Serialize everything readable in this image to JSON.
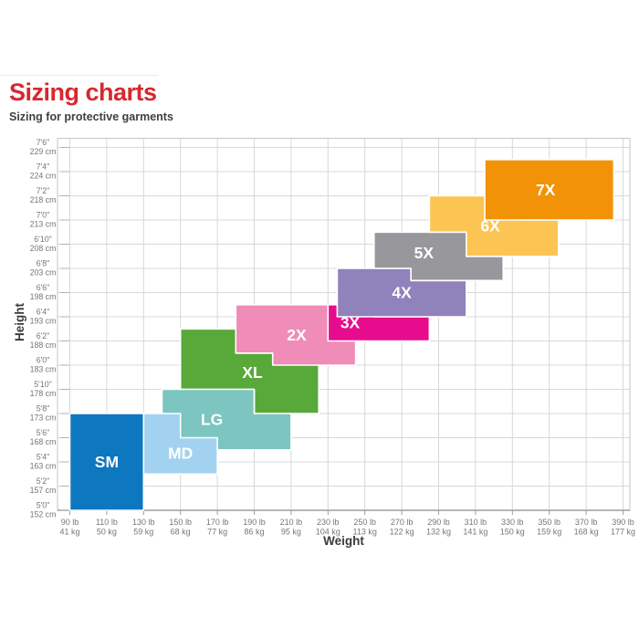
{
  "header": {
    "title": "Sizing charts",
    "subtitle": "Sizing for protective garments"
  },
  "colors": {
    "title": "#d7282e",
    "subtitle": "#404041",
    "grid": "#d8d8d8",
    "border": "#c6c6c6",
    "axis": "#9d9d9d",
    "tick_stub": "#b3b3b3",
    "tick_text": "#76767a",
    "axis_title": "#3b3b3d",
    "block_label": "#ffffff",
    "block_border": "#ffffff"
  },
  "chart_data": {
    "type": "area",
    "subtype": "size-region-map",
    "title": "Sizing charts",
    "subtitle": "Sizing for protective garments",
    "xlabel": "Weight",
    "ylabel": "Height",
    "grid": true,
    "legend": false,
    "x_axis": {
      "values_lb": [
        90,
        110,
        130,
        150,
        170,
        190,
        210,
        230,
        250,
        270,
        290,
        310,
        330,
        350,
        370,
        390
      ],
      "ticks": [
        [
          "90 lb",
          "41 kg"
        ],
        [
          "110 lb",
          "50 kg"
        ],
        [
          "130 lb",
          "59 kg"
        ],
        [
          "150 lb",
          "68 kg"
        ],
        [
          "170 lb",
          "77 kg"
        ],
        [
          "190 lb",
          "86 kg"
        ],
        [
          "210 lb",
          "95 kg"
        ],
        [
          "230 lb",
          "104 kg"
        ],
        [
          "250 lb",
          "113 kg"
        ],
        [
          "270 lb",
          "122 kg"
        ],
        [
          "290 lb",
          "132 kg"
        ],
        [
          "310 lb",
          "141 kg"
        ],
        [
          "330 lb",
          "150 kg"
        ],
        [
          "350 lb",
          "159 kg"
        ],
        [
          "370 lb",
          "168 kg"
        ],
        [
          "390 lb",
          "177 kg"
        ]
      ]
    },
    "y_axis": {
      "values_in": [
        60,
        62,
        64,
        66,
        68,
        70,
        72,
        74,
        76,
        78,
        80,
        82,
        84,
        86,
        88,
        90
      ],
      "ticks": [
        [
          "5'0\"",
          "152 cm"
        ],
        [
          "5'2\"",
          "157 cm"
        ],
        [
          "5'4\"",
          "163 cm"
        ],
        [
          "5'6\"",
          "168 cm"
        ],
        [
          "5'8\"",
          "173 cm"
        ],
        [
          "5'10\"",
          "178 cm"
        ],
        [
          "6'0\"",
          "183 cm"
        ],
        [
          "6'2\"",
          "188 cm"
        ],
        [
          "6'4\"",
          "193 cm"
        ],
        [
          "6'6\"",
          "198 cm"
        ],
        [
          "6'8\"",
          "203 cm"
        ],
        [
          "6'10\"",
          "208 cm"
        ],
        [
          "7'0\"",
          "213 cm"
        ],
        [
          "7'2\"",
          "218 cm"
        ],
        [
          "7'4\"",
          "224 cm"
        ],
        [
          "7'6\"",
          "229 cm"
        ]
      ]
    },
    "sizes": [
      {
        "label": "SM",
        "color": "#0d77bf",
        "weight_lb": [
          90,
          130
        ],
        "height_in": [
          60,
          68
        ],
        "polygon": [
          [
            90,
            68
          ],
          [
            130,
            68
          ],
          [
            130,
            60
          ],
          [
            90,
            60
          ]
        ],
        "label_at": [
          110,
          64
        ]
      },
      {
        "label": "XL",
        "color": "#58a93a",
        "weight_lb": [
          150,
          225
        ],
        "height_in": [
          68,
          75
        ],
        "polygon": [
          [
            150,
            75
          ],
          [
            180,
            75
          ],
          [
            180,
            73
          ],
          [
            225,
            73
          ],
          [
            225,
            68
          ],
          [
            190,
            68
          ],
          [
            190,
            70
          ],
          [
            150,
            70
          ]
        ],
        "label_at": [
          189,
          71.4
        ]
      },
      {
        "label": "LG",
        "color": "#7cc5c0",
        "weight_lb": [
          140,
          210
        ],
        "height_in": [
          65,
          70
        ],
        "polygon": [
          [
            140,
            70
          ],
          [
            190,
            70
          ],
          [
            190,
            68
          ],
          [
            210,
            68
          ],
          [
            210,
            65
          ],
          [
            150,
            65
          ],
          [
            150,
            66
          ],
          [
            140,
            66
          ]
        ],
        "label_at": [
          167,
          67.5
        ]
      },
      {
        "label": "MD",
        "color": "#a3d2f0",
        "weight_lb": [
          130,
          170
        ],
        "height_in": [
          63,
          68
        ],
        "polygon": [
          [
            130,
            68
          ],
          [
            150,
            68
          ],
          [
            150,
            66
          ],
          [
            170,
            66
          ],
          [
            170,
            63
          ],
          [
            130,
            63
          ]
        ],
        "label_at": [
          150,
          64.7
        ]
      },
      {
        "label": "2X",
        "color": "#ef8cb7",
        "weight_lb": [
          180,
          245
        ],
        "height_in": [
          72,
          77
        ],
        "polygon": [
          [
            180,
            77
          ],
          [
            245,
            77
          ],
          [
            245,
            72
          ],
          [
            200,
            72
          ],
          [
            200,
            73
          ],
          [
            180,
            73
          ]
        ],
        "label_at": [
          213,
          74.5
        ]
      },
      {
        "label": "3X",
        "color": "#e60c8d",
        "weight_lb": [
          230,
          285
        ],
        "height_in": [
          74,
          77
        ],
        "polygon": [
          [
            230,
            77
          ],
          [
            255,
            77
          ],
          [
            255,
            76
          ],
          [
            285,
            76
          ],
          [
            285,
            74
          ],
          [
            230,
            74
          ]
        ],
        "label_at": [
          242,
          75.5
        ]
      },
      {
        "label": "4X",
        "color": "#9082bb",
        "weight_lb": [
          235,
          305
        ],
        "height_in": [
          76,
          80
        ],
        "polygon": [
          [
            235,
            80
          ],
          [
            275,
            80
          ],
          [
            275,
            79
          ],
          [
            305,
            79
          ],
          [
            305,
            76
          ],
          [
            235,
            76
          ]
        ],
        "label_at": [
          270,
          78
        ]
      },
      {
        "label": "5X",
        "color": "#98979b",
        "weight_lb": [
          255,
          325
        ],
        "height_in": [
          79,
          83
        ],
        "polygon": [
          [
            255,
            83
          ],
          [
            305,
            83
          ],
          [
            305,
            81
          ],
          [
            325,
            81
          ],
          [
            325,
            79
          ],
          [
            275,
            79
          ],
          [
            275,
            80
          ],
          [
            255,
            80
          ]
        ],
        "label_at": [
          282,
          81.3
        ]
      },
      {
        "label": "6X",
        "color": "#fcc452",
        "weight_lb": [
          285,
          355
        ],
        "height_in": [
          81,
          86
        ],
        "polygon": [
          [
            285,
            86
          ],
          [
            335,
            86
          ],
          [
            335,
            84
          ],
          [
            355,
            84
          ],
          [
            355,
            81
          ],
          [
            305,
            81
          ],
          [
            305,
            83
          ],
          [
            285,
            83
          ]
        ],
        "label_at": [
          318,
          83.5
        ]
      },
      {
        "label": "7X",
        "color": "#f29307",
        "weight_lb": [
          315,
          385
        ],
        "height_in": [
          84,
          89
        ],
        "polygon": [
          [
            315,
            89
          ],
          [
            385,
            89
          ],
          [
            385,
            84
          ],
          [
            315,
            84
          ]
        ],
        "label_at": [
          348,
          86.5
        ]
      }
    ]
  }
}
